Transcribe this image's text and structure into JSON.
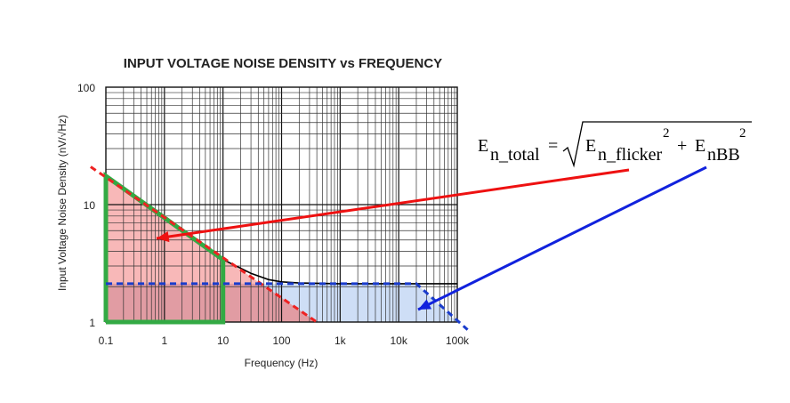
{
  "chart_data": {
    "type": "line",
    "title": "INPUT VOLTAGE NOISE DENSITY vs FREQUENCY",
    "xlabel": "Frequency (Hz)",
    "ylabel": "Input Voltage Noise Density (nV/√Hz)",
    "x_scale": "log",
    "y_scale": "log",
    "xlim": [
      0.1,
      100000
    ],
    "ylim": [
      1,
      100
    ],
    "x_tick_values": [
      0.1,
      1,
      10,
      100,
      1000,
      10000,
      100000
    ],
    "x_tick_labels": [
      "0.1",
      "1",
      "10",
      "100",
      "1k",
      "10k",
      "100k"
    ],
    "y_tick_values": [
      1,
      10,
      100
    ],
    "y_tick_labels": [
      "1",
      "10",
      "100"
    ],
    "grid": true,
    "series": [
      {
        "role": "measured",
        "color": "#000000",
        "style": "solid",
        "x": [
          0.1,
          1,
          10,
          30,
          60,
          100,
          200,
          1000,
          10000,
          100000
        ],
        "y": [
          17.5,
          8.0,
          3.4,
          2.6,
          2.3,
          2.2,
          2.15,
          2.12,
          2.12,
          2.12
        ]
      },
      {
        "role": "flicker",
        "color": "#ee2222",
        "style": "dashed",
        "x": [
          0.055,
          400
        ],
        "y": [
          21.0,
          1.0
        ]
      },
      {
        "role": "broadband",
        "color": "#1a3ccc",
        "style": "dashed",
        "x": [
          0.1,
          20000,
          150000
        ],
        "y": [
          2.12,
          2.12,
          0.86
        ]
      },
      {
        "role": "integration-window",
        "color": "#33aa44",
        "style": "solid",
        "x": [
          0.1,
          0.1,
          10,
          10,
          0.1
        ],
        "y": [
          1.0,
          17.5,
          3.4,
          1.0,
          1.0
        ]
      }
    ]
  },
  "equation": {
    "lhs": "E",
    "lhs_sub": "n_total",
    "equals": "=",
    "term1": "E",
    "term1_sub": "n_flicker",
    "term1_sup": "2",
    "plus": "+",
    "term2": "E",
    "term2_sub": "nBB",
    "term2_sup": "2"
  },
  "colors": {
    "flicker_fill": "#f5a0a0",
    "broadband_fill": "#c6d8f5",
    "overlap_fill": "#d4868c",
    "arrow_red": "#ee1111",
    "arrow_blue": "#1122dd"
  }
}
